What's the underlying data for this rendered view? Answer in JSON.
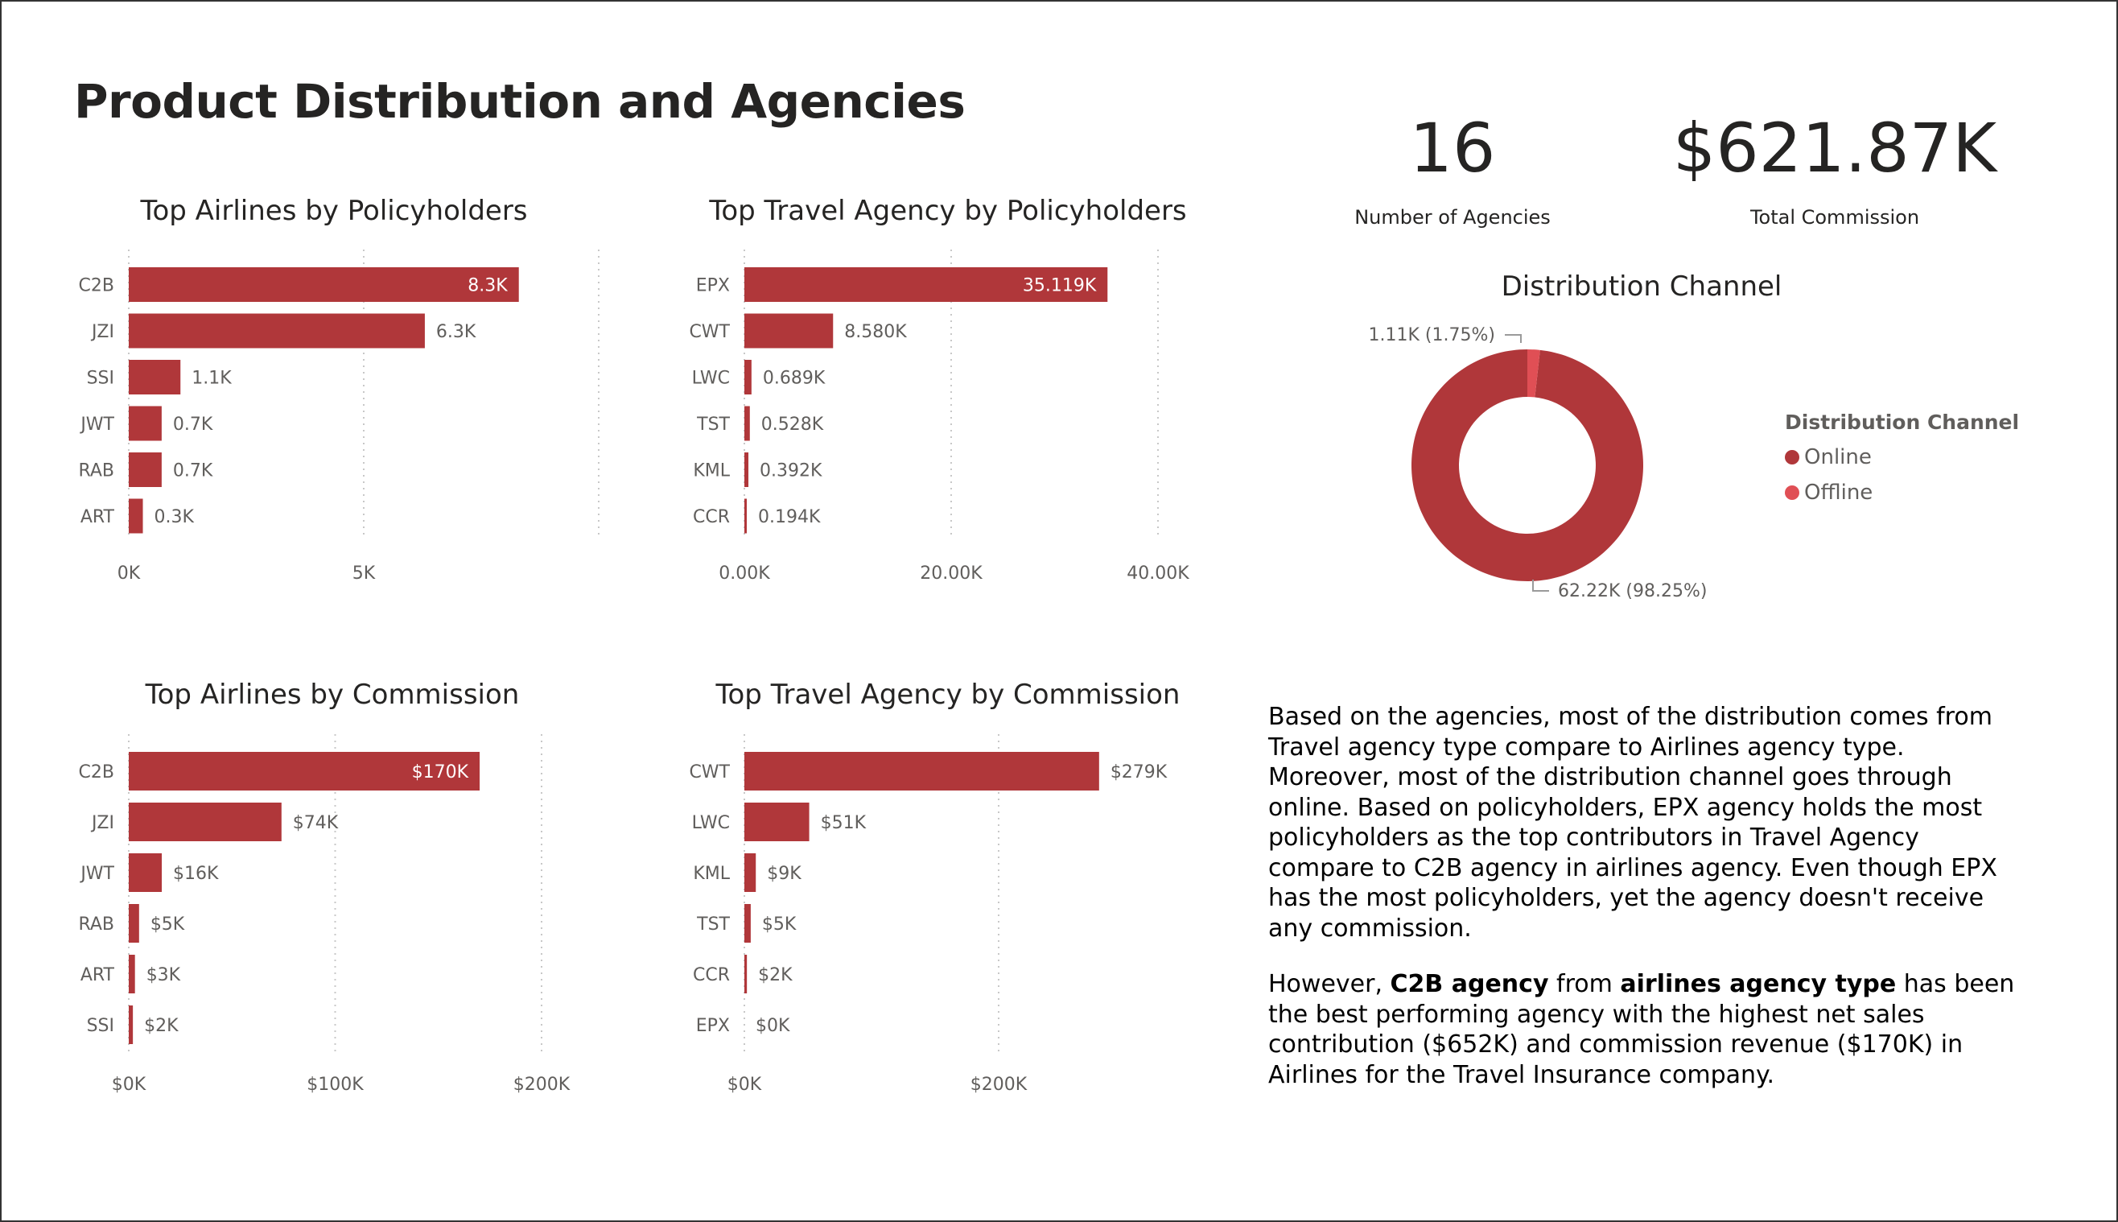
{
  "page": {
    "title": "Product Distribution and Agencies"
  },
  "kpis": [
    {
      "value": "16",
      "label": "Number of Agencies"
    },
    {
      "value": "$621.87K",
      "label": "Total Commission"
    }
  ],
  "colors": {
    "bar": "#B0373A",
    "online": "#B0373A",
    "offline": "#E04F55",
    "text": "#252423",
    "axis": "#605E5C",
    "grid": "#C8C8C8"
  },
  "legend": {
    "title": "Distribution Channel",
    "items": [
      {
        "label": "Online",
        "color": "#B0373A"
      },
      {
        "label": "Offline",
        "color": "#E04F55"
      }
    ]
  },
  "narrative": {
    "p1": "Based on the agencies, most of the distribution comes from Travel agency type compare to Airlines agency type. Moreover, most of the distribution channel goes through online. Based on policyholders, EPX agency holds the most policyholders as the top contributors in Travel Agency compare to C2B agency in airlines agency. Even though EPX has the most policyholders, yet the agency doesn't receive any commission.",
    "p2_a": "However, ",
    "p2_b": "C2B agency",
    "p2_c": " from ",
    "p2_d": "airlines agency type",
    "p2_e": " has been the best performing agency with the highest net sales contribution ($652K) and commission revenue ($170K) in Airlines for the Travel Insurance company."
  },
  "chart_data": [
    {
      "id": "airlines-policyholders",
      "type": "bar",
      "orientation": "horizontal",
      "title": "Top Airlines by Policyholders",
      "categories": [
        "C2B",
        "JZI",
        "SSI",
        "JWT",
        "RAB",
        "ART"
      ],
      "values": [
        8300,
        6300,
        1100,
        700,
        700,
        300
      ],
      "data_labels": [
        "8.3K",
        "6.3K",
        "1.1K",
        "0.7K",
        "0.7K",
        "0.3K"
      ],
      "xlim": [
        0,
        10000
      ],
      "ticks": [
        0,
        5000,
        10000
      ],
      "tick_labels": [
        "0K",
        "5K",
        ""
      ],
      "grid": true
    },
    {
      "id": "agency-policyholders",
      "type": "bar",
      "orientation": "horizontal",
      "title": "Top Travel Agency by Policyholders",
      "categories": [
        "EPX",
        "CWT",
        "LWC",
        "TST",
        "KML",
        "CCR"
      ],
      "values": [
        35119,
        8580,
        689,
        528,
        392,
        194
      ],
      "data_labels": [
        "35.119K",
        "8.580K",
        "0.689K",
        "0.528K",
        "0.392K",
        "0.194K"
      ],
      "xlim": [
        0,
        40000
      ],
      "ticks": [
        0,
        20000,
        40000
      ],
      "tick_labels": [
        "0.00K",
        "20.00K",
        "40.00K"
      ],
      "grid": true
    },
    {
      "id": "airlines-commission",
      "type": "bar",
      "orientation": "horizontal",
      "title": "Top Airlines by Commission",
      "categories": [
        "C2B",
        "JZI",
        "JWT",
        "RAB",
        "ART",
        "SSI"
      ],
      "values": [
        170000,
        74000,
        16000,
        5000,
        3000,
        2000
      ],
      "data_labels": [
        "$170K",
        "$74K",
        "$16K",
        "$5K",
        "$3K",
        "$2K"
      ],
      "xlim": [
        0,
        200000
      ],
      "ticks": [
        0,
        100000,
        200000
      ],
      "tick_labels": [
        "$0K",
        "$100K",
        "$200K"
      ],
      "grid": true
    },
    {
      "id": "agency-commission",
      "type": "bar",
      "orientation": "horizontal",
      "title": "Top Travel Agency by Commission",
      "categories": [
        "CWT",
        "LWC",
        "KML",
        "TST",
        "CCR",
        "EPX"
      ],
      "values": [
        279000,
        51000,
        9000,
        5000,
        2000,
        0
      ],
      "data_labels": [
        "$279K",
        "$51K",
        "$9K",
        "$5K",
        "$2K",
        "$0K"
      ],
      "xlim": [
        0,
        400000
      ],
      "ticks": [
        0,
        200000
      ],
      "tick_labels": [
        "$0K",
        "$200K"
      ],
      "grid": true
    },
    {
      "id": "distribution-channel",
      "type": "pie",
      "donut": true,
      "title": "Distribution Channel",
      "categories": [
        "Online",
        "Offline"
      ],
      "values": [
        62220,
        1110
      ],
      "percent": [
        98.25,
        1.75
      ],
      "data_labels": [
        "62.22K (98.25%)",
        "1.11K (1.75%)"
      ]
    }
  ]
}
